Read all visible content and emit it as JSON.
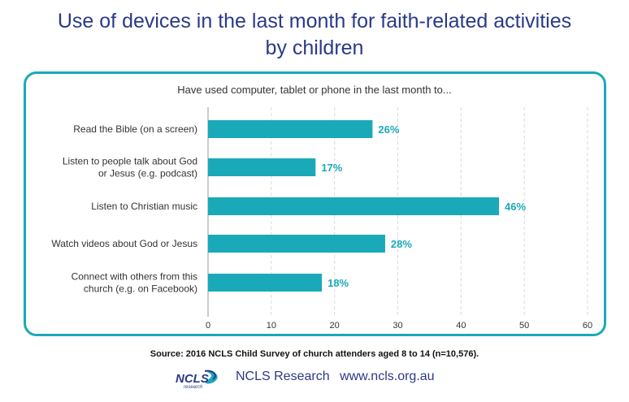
{
  "title_line1": "Use of devices in the last month for faith-related activities",
  "title_line2": "by children",
  "chart_data": {
    "type": "bar",
    "orientation": "horizontal",
    "subtitle": "Have used computer, tablet or phone in the last month to...",
    "categories": [
      [
        "Read the Bible (on a screen)"
      ],
      [
        "Listen to people talk about God",
        "or Jesus (e.g. podcast)"
      ],
      [
        "Listen to Christian music"
      ],
      [
        "Watch videos about God or Jesus"
      ],
      [
        "Connect with others from this",
        "church (e.g. on Facebook)"
      ]
    ],
    "values": [
      26,
      17,
      46,
      28,
      18
    ],
    "data_labels": [
      "26%",
      "17%",
      "46%",
      "28%",
      "18%"
    ],
    "xlim": [
      0,
      60
    ],
    "xticks": [
      0,
      10,
      20,
      30,
      40,
      50,
      60
    ],
    "grid": "vertical dashed",
    "bar_color": "#1aa9b8",
    "label_color": "#1aa9b8"
  },
  "footer": {
    "source": "Source: 2016 NCLS Child Survey of church attenders aged 8 to 14 (n=10,576).",
    "logo_text": "NCLS",
    "logo_subtext": "research",
    "brand": "NCLS Research",
    "url": "www.ncls.org.au"
  },
  "colors": {
    "title": "#2b3a87",
    "accent": "#1aa9b8"
  }
}
